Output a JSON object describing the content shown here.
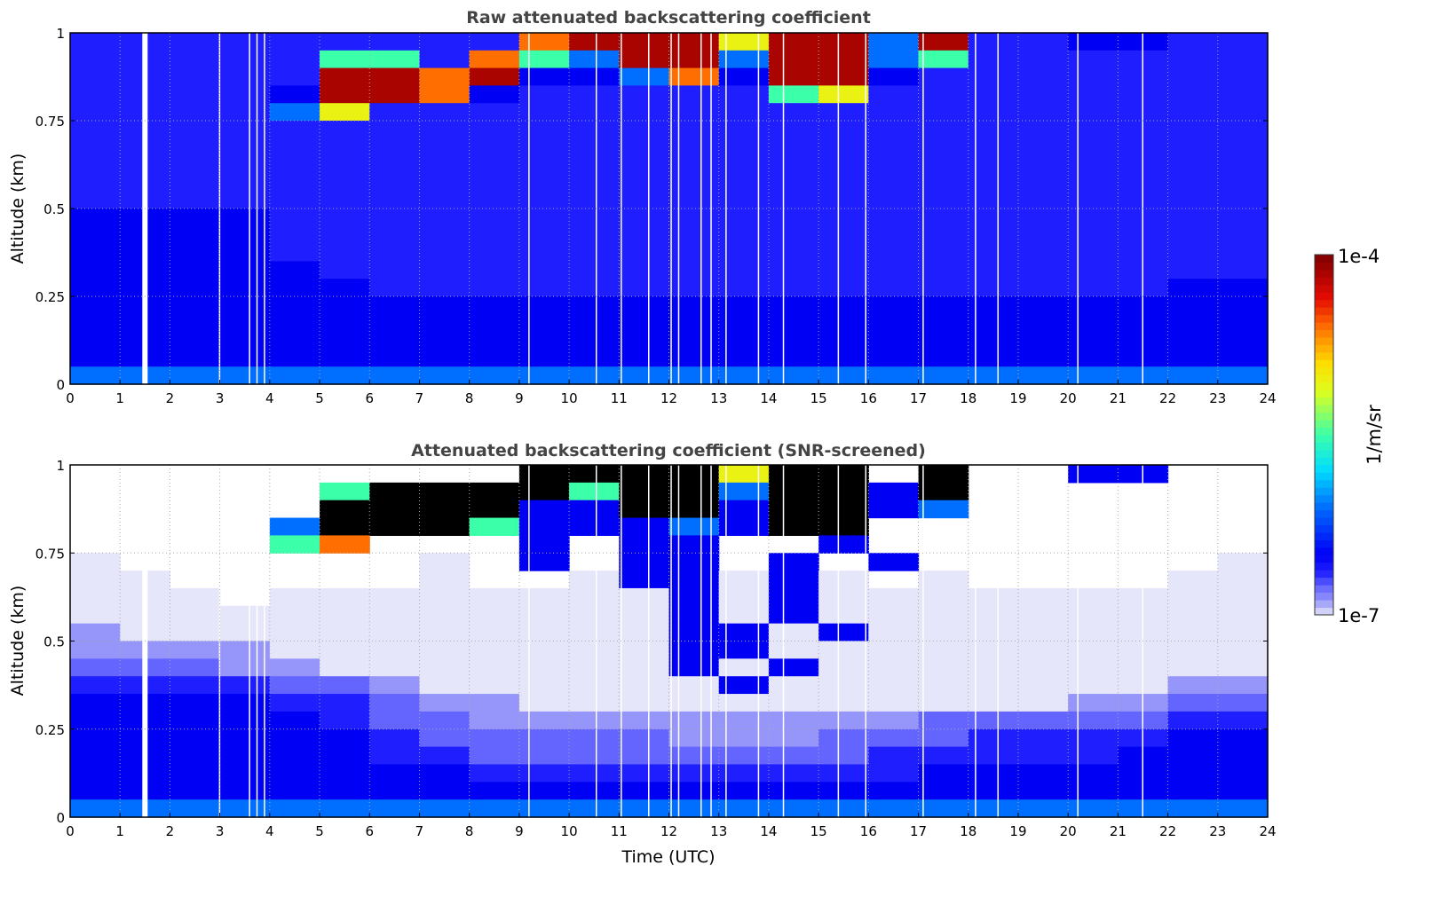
{
  "chart_data": [
    {
      "type": "heatmap",
      "title": "Raw attenuated backscattering coefficient",
      "xlabel": "",
      "ylabel": "Altitude (km)",
      "xlim": [
        0,
        24
      ],
      "ylim": [
        0,
        1
      ],
      "xticks": [
        "0",
        "1",
        "2",
        "3",
        "4",
        "5",
        "6",
        "7",
        "8",
        "9",
        "10",
        "11",
        "12",
        "13",
        "14",
        "15",
        "16",
        "17",
        "18",
        "19",
        "20",
        "21",
        "22",
        "23",
        "24"
      ],
      "yticks": [
        "0",
        "0.25",
        "0.5",
        "0.75",
        "1"
      ],
      "grid": true,
      "time_bin_hours": 1,
      "altitude_bin_km": 0.05,
      "rows_top_to_bottom": [
        "333333333899979959334433",
        "333336638659959956333333",
        "333339989445849943333333",
        "333349984333336733333333",
        "333357333333333333333333",
        "333333333333333333333333",
        "333333333333333333333333",
        "333333333333333333333333",
        "333333333333333333333333",
        "333333333333333333333333",
        "444433333333333333333333",
        "444433333333333333333333",
        "444433333333333333333333",
        "444443333333333333333333",
        "444444333333333333333344",
        "444444444444444444444444",
        "444444444444444444444444",
        "444444444444444444444444",
        "444444444444444444444444",
        "555555555555555555555555"
      ]
    },
    {
      "type": "heatmap",
      "title": "Attenuated backscattering coefficient (SNR-screened)",
      "xlabel": "Time (UTC)",
      "ylabel": "Altitude (km)",
      "xlim": [
        0,
        24
      ],
      "ylim": [
        0,
        1
      ],
      "xticks": [
        "0",
        "1",
        "2",
        "3",
        "4",
        "5",
        "6",
        "7",
        "8",
        "9",
        "10",
        "11",
        "12",
        "13",
        "14",
        "15",
        "16",
        "17",
        "18",
        "19",
        "20",
        "21",
        "22",
        "23",
        "24"
      ],
      "yticks": [
        "0",
        "0.25",
        "0.5",
        "0.75",
        "1"
      ],
      "grid": true,
      "time_bin_hours": 1,
      "altitude_bin_km": 0.05,
      "rows_top_to_bottom": [
        ".........XXXX7XX.X..44..",
        ".....6XXXX6XX5XX4X......",
        ".....XXXX44XX4XX45......",
        "....5XXX644454XX........",
        "....68...4.44..4........",
        "0......0.4.44.4.4......0",
        "00.....0..044040.0....00",
        "000.00000000404000000000",
        "000000000000404000000000",
        "100000000000440400000000",
        "111100000000440000000000",
        "222110000000404000000000",
        "333322100000040000000011",
        "444433211000000000001122",
        "444443221111111112222233",
        "444444322222111222333344",
        "444444332222222233333444",
        "444444443333333334444444",
        "444444444444444444444444",
        "555555555555555555555555"
      ]
    }
  ],
  "legend": {
    "level_codes": "'.' = screened out (no data), 'X' = above colour scale, digits = colour-scale level",
    "level_fraction_of_log_scale": [
      0,
      0.04,
      0.08,
      0.12,
      0.17,
      0.3,
      0.5,
      0.65,
      0.8,
      0.95
    ],
    "missing_profiles_hours": [
      1.5,
      3.0,
      3.6,
      3.75,
      3.9,
      9.2,
      10.55,
      11.05,
      11.6,
      12.05,
      12.2,
      12.65,
      12.85,
      13.15,
      13.8,
      14.3,
      15.4,
      15.95,
      17.1,
      18.15,
      18.6,
      20.2,
      21.5
    ],
    "colorbar": {
      "max_label": "1e-4",
      "min_label": "1e-7",
      "unit_label": "1/m/sr",
      "scale": "log"
    }
  }
}
